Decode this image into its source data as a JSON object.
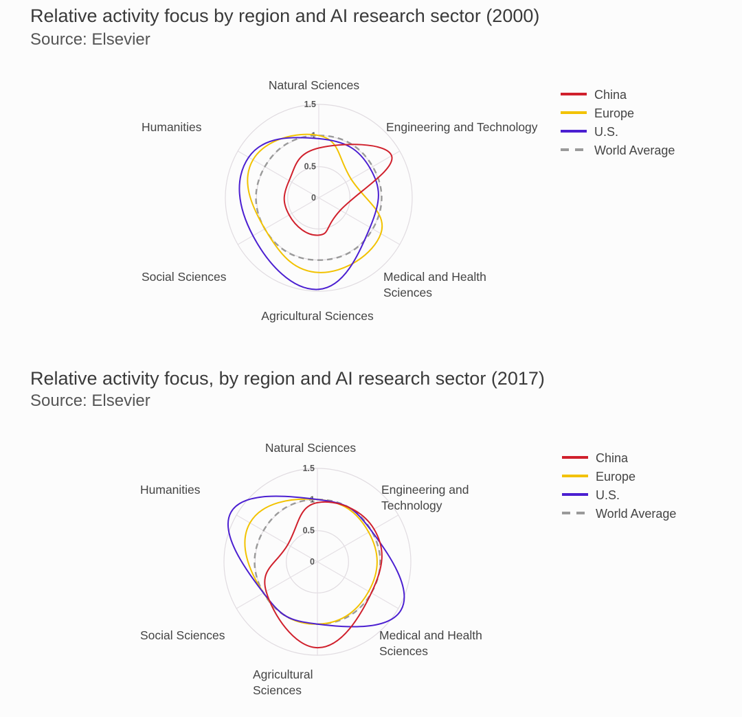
{
  "chart_data": [
    {
      "type": "radar",
      "title": "Relative activity focus by region and AI research sector (2000)",
      "subtitle": "Source: Elsevier",
      "axes": [
        "Natural Sciences",
        "Engineering and Technology",
        "Medical and Health Sciences",
        "Agricultural Sciences",
        "Social Sciences",
        "Humanities"
      ],
      "axis_label_lines": [
        [
          "Natural Sciences"
        ],
        [
          "Engineering and Technology"
        ],
        [
          "Medical and Health",
          "Sciences"
        ],
        [
          "Agricultural Sciences"
        ],
        [
          "Social Sciences"
        ],
        [
          "Humanities"
        ]
      ],
      "ticks": [
        "0",
        "0.5",
        "1",
        "1.5"
      ],
      "rmax": 1.5,
      "legend_position": "top-right",
      "series": [
        {
          "name": "China",
          "color": "#d0202c",
          "dashed": false,
          "values": [
            0.8,
            1.35,
            0.4,
            0.6,
            0.55,
            0.55
          ]
        },
        {
          "name": "Europe",
          "color": "#f2c200",
          "dashed": false,
          "values": [
            1.0,
            0.6,
            1.15,
            1.2,
            1.0,
            1.22
          ]
        },
        {
          "name": "U.S.",
          "color": "#4b1fd1",
          "dashed": false,
          "values": [
            0.95,
            0.95,
            0.95,
            1.47,
            1.22,
            1.3
          ]
        },
        {
          "name": "World Average",
          "color": "#9a9a9a",
          "dashed": true,
          "values": [
            1.0,
            1.0,
            1.0,
            1.0,
            1.0,
            1.0
          ]
        }
      ]
    },
    {
      "type": "radar",
      "title": "Relative activity focus, by region and AI research sector (2017)",
      "subtitle": "Source: Elsevier",
      "axes": [
        "Natural Sciences",
        "Engineering and Technology",
        "Medical and Health Sciences",
        "Agricultural Sciences",
        "Social Sciences",
        "Humanities"
      ],
      "axis_label_lines": [
        [
          "Natural Sciences"
        ],
        [
          "Engineering and",
          "Technology"
        ],
        [
          "Medical and Health",
          "Sciences"
        ],
        [
          "Agricultural",
          "Sciences"
        ],
        [
          "Social Sciences"
        ],
        [
          "Humanities"
        ]
      ],
      "ticks": [
        "0",
        "0.5",
        "1",
        "1.5"
      ],
      "rmax": 1.5,
      "legend_position": "top-right",
      "series": [
        {
          "name": "China",
          "color": "#d0202c",
          "dashed": false,
          "values": [
            0.95,
            1.05,
            1.0,
            1.38,
            0.95,
            0.55
          ]
        },
        {
          "name": "Europe",
          "color": "#f2c200",
          "dashed": false,
          "values": [
            1.0,
            0.95,
            0.95,
            1.0,
            1.0,
            1.25
          ]
        },
        {
          "name": "U.S.",
          "color": "#4b1fd1",
          "dashed": false,
          "values": [
            1.0,
            1.0,
            1.55,
            1.0,
            1.0,
            1.6
          ]
        },
        {
          "name": "World Average",
          "color": "#9a9a9a",
          "dashed": true,
          "values": [
            1.0,
            1.0,
            1.0,
            1.0,
            1.0,
            1.0
          ]
        }
      ]
    }
  ]
}
